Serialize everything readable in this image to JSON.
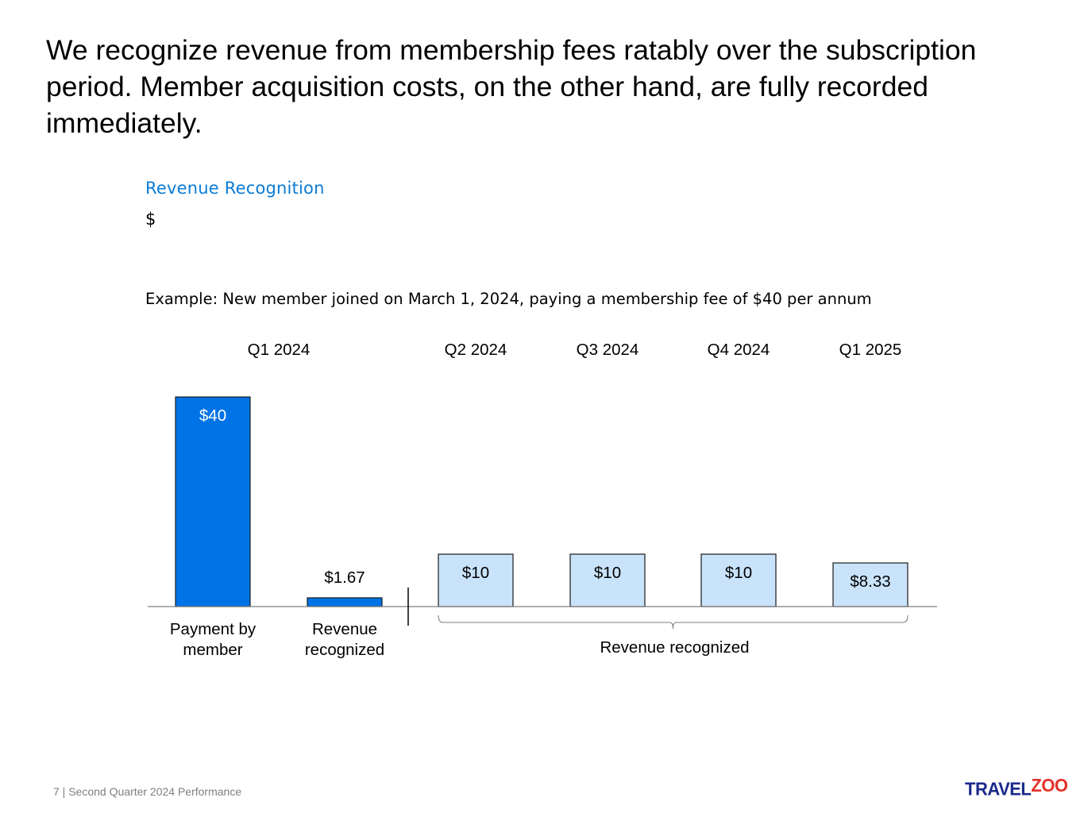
{
  "headline": "We recognize revenue from membership fees ratably over the subscription period. Member acquisition costs, on the other hand, are fully recorded immediately.",
  "chart_data": {
    "type": "bar",
    "title": "Revenue Recognition",
    "ylabel": "$",
    "subtitle": "Example: New member joined on March 1, 2024, paying a membership fee of $40 per annum",
    "ylim": [
      0,
      40
    ],
    "periods": [
      {
        "label": "Q1 2024",
        "span": [
          0,
          1
        ]
      },
      {
        "label": "Q2 2024",
        "span": [
          2,
          2
        ]
      },
      {
        "label": "Q3 2024",
        "span": [
          3,
          3
        ]
      },
      {
        "label": "Q4 2024",
        "span": [
          4,
          4
        ]
      },
      {
        "label": "Q1 2025",
        "span": [
          5,
          5
        ]
      }
    ],
    "bars": [
      {
        "category": "Payment by member",
        "value": 40,
        "label": "$40",
        "period": "Q1 2024",
        "color": "#0073e6",
        "label_position": "inside"
      },
      {
        "category": "Revenue recognized",
        "value": 1.67,
        "label": "$1.67",
        "period": "Q1 2024",
        "color": "#0073e6",
        "label_position": "above"
      },
      {
        "category": "",
        "value": 10,
        "label": "$10",
        "period": "Q2 2024",
        "color": "#c9e3fb",
        "label_position": "inside"
      },
      {
        "category": "",
        "value": 10,
        "label": "$10",
        "period": "Q3 2024",
        "color": "#c9e3fb",
        "label_position": "inside"
      },
      {
        "category": "",
        "value": 10,
        "label": "$10",
        "period": "Q4 2024",
        "color": "#c9e3fb",
        "label_position": "inside"
      },
      {
        "category": "",
        "value": 8.33,
        "label": "$8.33",
        "period": "Q1 2025",
        "color": "#c9e3fb",
        "label_position": "inside"
      }
    ],
    "category_labels": [
      {
        "lines": [
          "Payment by",
          "member"
        ],
        "bar": 0
      },
      {
        "lines": [
          "Revenue",
          "recognized"
        ],
        "bar": 1
      }
    ],
    "group_annotation": {
      "label": "Revenue recognized",
      "bars": [
        2,
        5
      ]
    }
  },
  "footer": "7 | Second Quarter 2024 Performance",
  "logo": {
    "part1": "TRAVEL",
    "part2": "ZOO"
  },
  "colors": {
    "accent": "#0a7bd6",
    "dark_bar": "#0073e6",
    "light_bar": "#c9e3fb"
  }
}
